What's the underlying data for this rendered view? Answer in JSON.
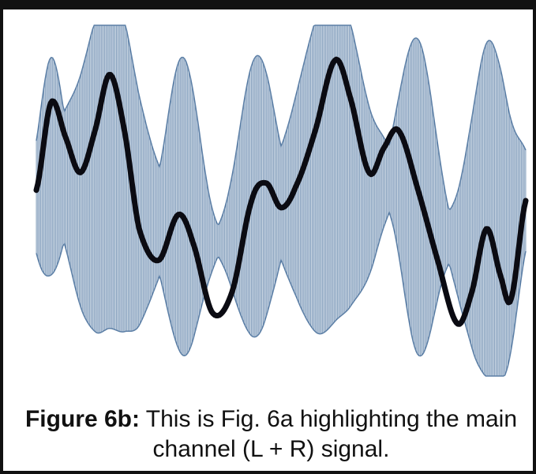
{
  "figure": {
    "label": "Figure 6b:",
    "caption": " This is Fig. 6a highlighting the main channel (L + R) signal."
  },
  "colors": {
    "multiplex_fill": "#9fb6cf",
    "multiplex_line": "#5c7fa6",
    "main_channel": "#0b0b12",
    "border": "#111111"
  },
  "signals": {
    "main_channel_points": [
      [
        0.0,
        0.47
      ],
      [
        0.03,
        0.22
      ],
      [
        0.06,
        0.32
      ],
      [
        0.09,
        0.42
      ],
      [
        0.12,
        0.3
      ],
      [
        0.15,
        0.14
      ],
      [
        0.18,
        0.3
      ],
      [
        0.21,
        0.58
      ],
      [
        0.25,
        0.67
      ],
      [
        0.29,
        0.54
      ],
      [
        0.32,
        0.62
      ],
      [
        0.36,
        0.82
      ],
      [
        0.4,
        0.76
      ],
      [
        0.44,
        0.5
      ],
      [
        0.47,
        0.45
      ],
      [
        0.5,
        0.52
      ],
      [
        0.53,
        0.46
      ],
      [
        0.57,
        0.3
      ],
      [
        0.61,
        0.1
      ],
      [
        0.64,
        0.2
      ],
      [
        0.68,
        0.42
      ],
      [
        0.71,
        0.35
      ],
      [
        0.74,
        0.3
      ],
      [
        0.78,
        0.47
      ],
      [
        0.82,
        0.67
      ],
      [
        0.86,
        0.85
      ],
      [
        0.89,
        0.76
      ],
      [
        0.92,
        0.58
      ],
      [
        0.95,
        0.72
      ],
      [
        0.97,
        0.78
      ],
      [
        1.0,
        0.5
      ]
    ]
  }
}
